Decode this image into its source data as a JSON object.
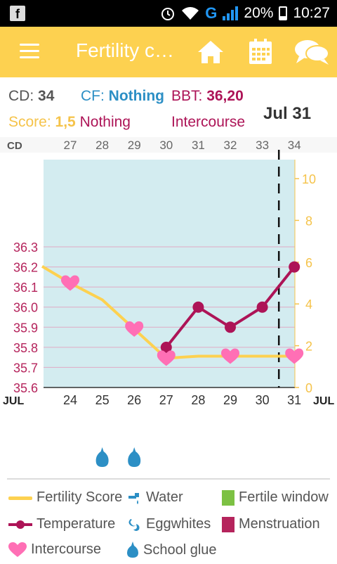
{
  "status": {
    "battery": "20%",
    "time": "10:27",
    "network": "G"
  },
  "appbar": {
    "title": "Fertility c…",
    "home_icon": "home-icon",
    "calendar_icon": "calendar-icon",
    "chat_icon": "chat-icon"
  },
  "info": {
    "cd_label": "CD:",
    "cd_value": "34",
    "cf_label": "CF:",
    "cf_value": "Nothing",
    "bbt_label": "BBT:",
    "bbt_value": "36,20",
    "score_label": "Score:",
    "score_value": "1,5",
    "score_text": "Nothing",
    "intercourse": "Intercourse",
    "date": "Jul 31"
  },
  "colors": {
    "yellow": "#fdd150",
    "magenta": "#ad1457",
    "pink": "#ff6fb5",
    "blue": "#2c8fc5",
    "green": "#7cc143"
  },
  "chart_data": {
    "type": "line",
    "cd_header": "CD",
    "cycle_days": [
      "27",
      "28",
      "29",
      "30",
      "31",
      "32",
      "33",
      "34"
    ],
    "x_dates": [
      "24",
      "25",
      "26",
      "27",
      "28",
      "29",
      "30",
      "31"
    ],
    "month_left": "JUL",
    "month_right": "JUL",
    "temp_axis": {
      "ticks": [
        "36.3",
        "36.2",
        "36.1",
        "36.0",
        "35.9",
        "35.8",
        "35.7",
        "35.6"
      ],
      "range": [
        35.6,
        36.3
      ]
    },
    "score_axis": {
      "ticks": [
        "10",
        "8",
        "6",
        "4",
        "2",
        "0"
      ],
      "range": [
        0,
        10
      ]
    },
    "series": [
      {
        "name": "Temperature",
        "x": [
          "27",
          "28",
          "29",
          "30",
          "31"
        ],
        "values": [
          35.8,
          36.0,
          35.9,
          36.0,
          36.2
        ]
      },
      {
        "name": "Fertility Score",
        "x": [
          "23",
          "24",
          "25",
          "26",
          "27",
          "28",
          "29",
          "30",
          "31"
        ],
        "values": [
          5.8,
          5.0,
          4.2,
          2.8,
          1.4,
          1.5,
          1.5,
          1.5,
          1.5
        ]
      }
    ],
    "intercourse_days": [
      "24",
      "26",
      "27",
      "29",
      "31"
    ],
    "today": "31"
  },
  "markers": {
    "school_glue_days": [
      "25",
      "26"
    ]
  },
  "legend": [
    {
      "label": "Fertility Score",
      "icon": "fertility-score-line"
    },
    {
      "label": "Water",
      "icon": "water-tap-icon"
    },
    {
      "label": "Fertile window",
      "icon": "green-square"
    },
    {
      "label": "Temperature",
      "icon": "temperature-line"
    },
    {
      "label": "Eggwhites",
      "icon": "eggwhites-icon"
    },
    {
      "label": "Menstruation",
      "icon": "magenta-square"
    },
    {
      "label": "Intercourse",
      "icon": "heart-icon"
    },
    {
      "label": "School glue",
      "icon": "drop-icon"
    }
  ]
}
